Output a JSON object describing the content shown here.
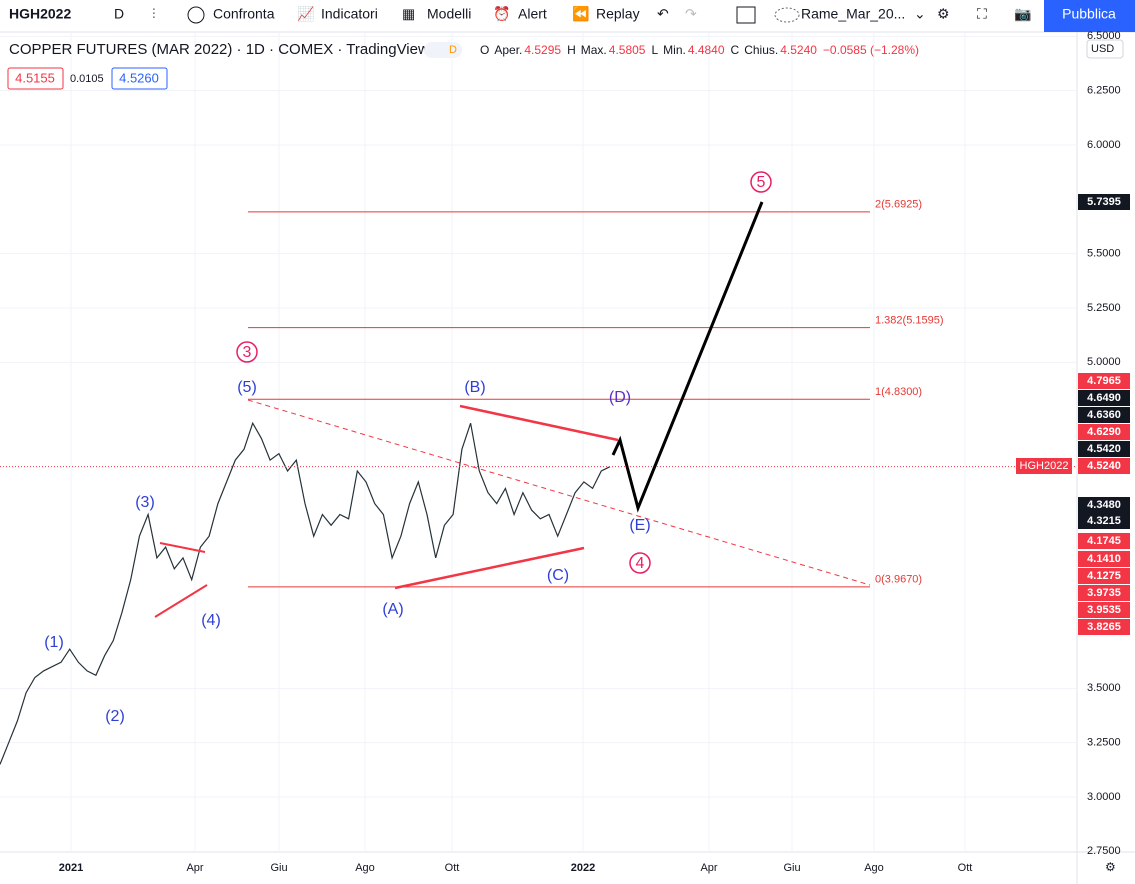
{
  "toolbar": {
    "symbol": "HGH2022",
    "interval": "D",
    "buttons": [
      "Confronta",
      "Indicatori",
      "Modelli",
      "Alert",
      "Replay"
    ],
    "layout_name": "Rame_Mar_20...",
    "publish": "Pubblica"
  },
  "legend": {
    "title": "COPPER FUTURES (MAR 2022) · 1D · COMEX · TradingView",
    "badge": "D",
    "ohlc": [
      {
        "key": "O",
        "label": "Aper.",
        "value": "4.5295"
      },
      {
        "key": "H",
        "label": "Max.",
        "value": "4.5805"
      },
      {
        "key": "L",
        "label": "Min.",
        "value": "4.4840"
      },
      {
        "key": "C",
        "label": "Chius.",
        "value": "4.5240"
      }
    ],
    "change": "−0.0585 (−1.28%)",
    "bid": "4.5155",
    "spread": "0.0105",
    "ask": "4.5260"
  },
  "currency": "USD",
  "chart_data": {
    "type": "line",
    "series": [
      {
        "name": "HGH2022",
        "color": "#26323a",
        "values": [
          3.15,
          3.25,
          3.35,
          3.48,
          3.55,
          3.58,
          3.6,
          3.62,
          3.68,
          3.62,
          3.58,
          3.56,
          3.65,
          3.72,
          3.85,
          4.0,
          4.2,
          4.3,
          4.1,
          4.15,
          4.05,
          4.1,
          4.0,
          4.15,
          4.2,
          4.35,
          4.45,
          4.55,
          4.6,
          4.72,
          4.65,
          4.55,
          4.58,
          4.5,
          4.55,
          4.35,
          4.2,
          4.3,
          4.25,
          4.3,
          4.28,
          4.5,
          4.45,
          4.35,
          4.3,
          4.1,
          4.2,
          4.35,
          4.45,
          4.3,
          4.1,
          4.25,
          4.3,
          4.6,
          4.72,
          4.5,
          4.4,
          4.35,
          4.42,
          4.3,
          4.4,
          4.32,
          4.28,
          4.3,
          4.2,
          4.3,
          4.4,
          4.45,
          4.42,
          4.5,
          4.52
        ]
      }
    ],
    "ylim": [
      2.75,
      6.5
    ],
    "yticks": [
      {
        "value": 6.5,
        "label": "6.5000"
      },
      {
        "value": 6.25,
        "label": "6.2500"
      },
      {
        "value": 6.0,
        "label": "6.0000"
      },
      {
        "value": 5.5,
        "label": "5.5000"
      },
      {
        "value": 5.25,
        "label": "5.2500"
      },
      {
        "value": 5.0,
        "label": "5.0000"
      },
      {
        "value": 3.5,
        "label": "3.5000"
      },
      {
        "value": 3.25,
        "label": "3.2500"
      },
      {
        "value": 3.0,
        "label": "3.0000"
      },
      {
        "value": 2.75,
        "label": "2.7500"
      }
    ],
    "x_labels": [
      "2021",
      "Apr",
      "Giu",
      "Ago",
      "Ott",
      "2022",
      "Apr",
      "Giu",
      "Ago",
      "Ott"
    ],
    "fib_levels": [
      {
        "value": 5.6925,
        "label": "2(5.6925)"
      },
      {
        "value": 5.1595,
        "label": "1.382(5.1595)"
      },
      {
        "value": 4.83,
        "label": "1(4.8300)"
      },
      {
        "value": 3.967,
        "label": "0(3.9670)"
      }
    ],
    "wave_labels": [
      "(1)",
      "(2)",
      "(3)",
      "(4)",
      "(5)",
      "3",
      "(A)",
      "(B)",
      "(C)",
      "(D)",
      "(E)",
      "4",
      "5"
    ],
    "price_badges": [
      {
        "text": "5.7395",
        "color": "#131722"
      },
      {
        "text": "4.7965",
        "color": "#f23645"
      },
      {
        "text": "4.6490",
        "color": "#131722"
      },
      {
        "text": "4.6360",
        "color": "#131722"
      },
      {
        "text": "4.6290",
        "color": "#f23645"
      },
      {
        "text": "4.5420",
        "color": "#131722"
      },
      {
        "text": "4.5240",
        "color": "#f23645"
      },
      {
        "text": "4.3480",
        "color": "#131722"
      },
      {
        "text": "4.3215",
        "color": "#131722"
      },
      {
        "text": "4.1745",
        "color": "#f23645"
      },
      {
        "text": "4.1410",
        "color": "#f23645"
      },
      {
        "text": "4.1275",
        "color": "#f23645"
      },
      {
        "text": "3.9735",
        "color": "#f23645"
      },
      {
        "text": "3.9535",
        "color": "#f23645"
      },
      {
        "text": "3.8265",
        "color": "#f23645"
      }
    ]
  }
}
